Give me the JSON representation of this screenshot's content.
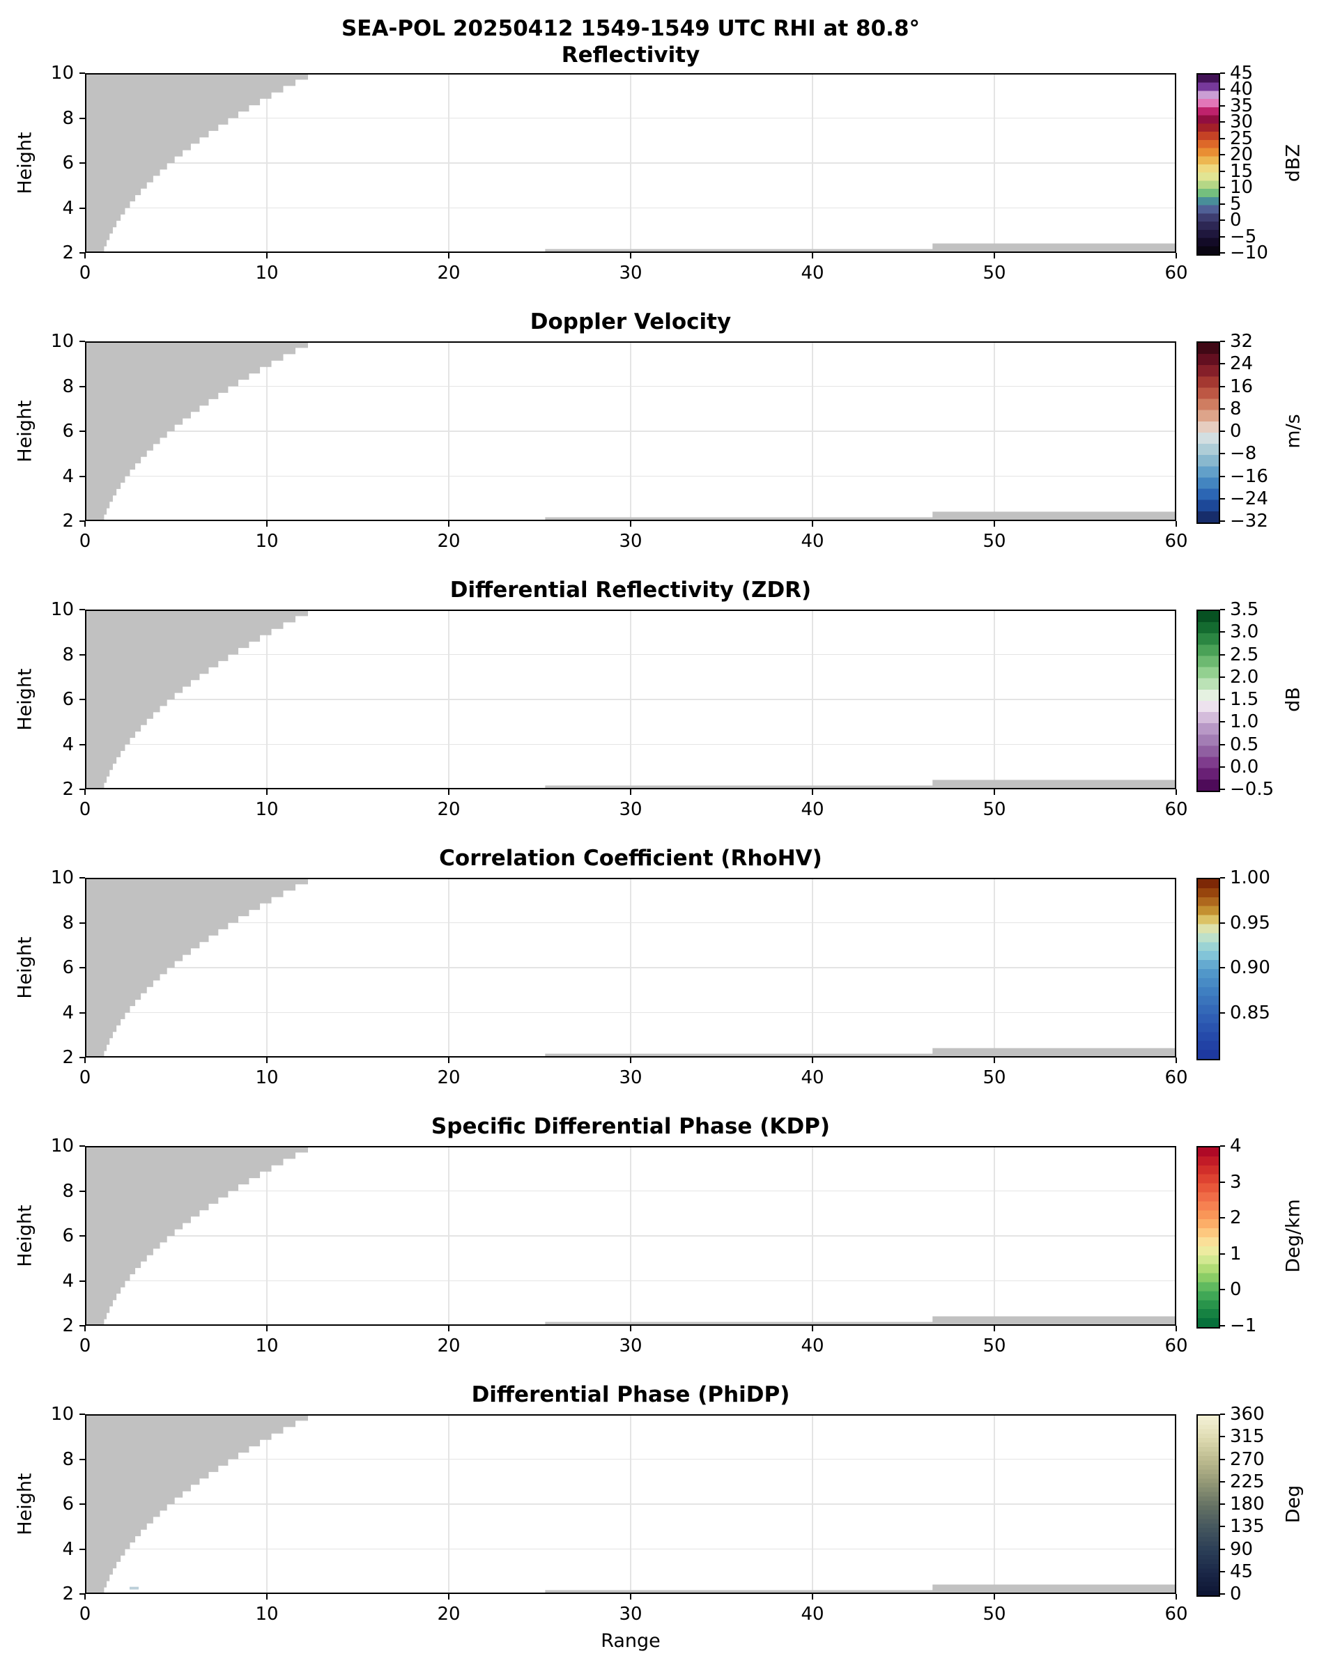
{
  "figure": {
    "title": "SEA-POL 20250412 1549-1549 UTC RHI at 80.8°",
    "xlabel": "Range",
    "ylabel": "Height",
    "background": "#ffffff"
  },
  "chart_data": {
    "type": "heatmap",
    "description": "Six stacked RHI radar panels sharing identical axes; data area is blank except gray no-data regions",
    "x_range": [
      0,
      60
    ],
    "y_range": [
      2,
      10
    ],
    "x_ticks": [
      0,
      10,
      20,
      30,
      40,
      50,
      60
    ],
    "y_ticks": [
      2,
      4,
      6,
      8,
      10
    ],
    "grid": true,
    "grid_color": "#e4e4e4",
    "no_data_color": "#c1c1c1",
    "no_data_regions": {
      "wedge_left_x": 0.08,
      "wedge_profile": [
        [
          2.0,
          1.05
        ],
        [
          2.29,
          1.19
        ],
        [
          2.57,
          1.35
        ],
        [
          2.86,
          1.53
        ],
        [
          3.14,
          1.73
        ],
        [
          3.43,
          1.96
        ],
        [
          3.71,
          2.2
        ],
        [
          4.0,
          2.47
        ],
        [
          4.29,
          2.76
        ],
        [
          4.57,
          3.07
        ],
        [
          4.86,
          3.4
        ],
        [
          5.14,
          3.75
        ],
        [
          5.43,
          4.12
        ],
        [
          5.71,
          4.51
        ],
        [
          6.0,
          4.93
        ],
        [
          6.29,
          5.37
        ],
        [
          6.57,
          5.82
        ],
        [
          6.86,
          6.3
        ],
        [
          7.14,
          6.8
        ],
        [
          7.43,
          7.33
        ],
        [
          7.71,
          7.87
        ],
        [
          8.0,
          8.43
        ],
        [
          8.29,
          9.02
        ],
        [
          8.57,
          9.62
        ],
        [
          8.86,
          10.25
        ],
        [
          9.14,
          10.9
        ],
        [
          9.43,
          11.57
        ],
        [
          9.71,
          12.26
        ],
        [
          10.0,
          12.97
        ]
      ],
      "strips": [
        {
          "x0": 25.3,
          "x1": 60,
          "y0": 2.0,
          "y1": 2.17
        },
        {
          "x0": 46.6,
          "x1": 60,
          "y0": 2.0,
          "y1": 2.42
        }
      ]
    },
    "marks": [
      {
        "panel": "phidp",
        "x0": 2.45,
        "x1": 2.95,
        "y0": 2.2,
        "y1": 2.32,
        "color": "#bccfd9"
      }
    ],
    "panels": [
      {
        "id": "reflectivity",
        "title": "Reflectivity",
        "unit": "dBZ",
        "vmin": -10,
        "vmax": 45,
        "cbar_ticks": [
          45,
          40,
          35,
          30,
          25,
          20,
          15,
          10,
          5,
          0,
          -5,
          -10
        ],
        "cbar_tick_labels": [
          "45",
          "40",
          "35",
          "30",
          "25",
          "20",
          "15",
          "10",
          "5",
          "0",
          "−5",
          "−10"
        ],
        "bands": 22,
        "cmap_stops": [
          [
            0.0,
            "#2e0835"
          ],
          [
            0.05,
            "#5b1d7e"
          ],
          [
            0.08,
            "#8a4cae"
          ],
          [
            0.105,
            "#c096d0"
          ],
          [
            0.125,
            "#d8a9da"
          ],
          [
            0.148,
            "#e48cc6"
          ],
          [
            0.17,
            "#e160ab"
          ],
          [
            0.195,
            "#cb2d7b"
          ],
          [
            0.22,
            "#a80f55"
          ],
          [
            0.255,
            "#8d0e3c"
          ],
          [
            0.295,
            "#a32029"
          ],
          [
            0.335,
            "#c23d25"
          ],
          [
            0.375,
            "#d95f27"
          ],
          [
            0.42,
            "#e8832e"
          ],
          [
            0.46,
            "#eca83f"
          ],
          [
            0.5,
            "#eecb69"
          ],
          [
            0.545,
            "#efe795"
          ],
          [
            0.585,
            "#d7e292"
          ],
          [
            0.625,
            "#a8d381"
          ],
          [
            0.66,
            "#73be7e"
          ],
          [
            0.69,
            "#47a68f"
          ],
          [
            0.715,
            "#4a7da1"
          ],
          [
            0.74,
            "#54699f"
          ],
          [
            0.775,
            "#454a80"
          ],
          [
            0.818,
            "#342e5f"
          ],
          [
            0.87,
            "#251d46"
          ],
          [
            0.91,
            "#170e30"
          ],
          [
            1.0,
            "#060309"
          ]
        ]
      },
      {
        "id": "velocity",
        "title": "Doppler Velocity",
        "unit": "m/s",
        "vmin": -32,
        "vmax": 32,
        "cbar_ticks": [
          32,
          24,
          16,
          8,
          0,
          -8,
          -16,
          -24,
          -32
        ],
        "cbar_tick_labels": [
          "32",
          "24",
          "16",
          "8",
          "0",
          "−8",
          "−16",
          "−24",
          "−32"
        ],
        "bands": 16,
        "cmap_stops": [
          [
            0.0,
            "#2e0510"
          ],
          [
            0.125,
            "#751225"
          ],
          [
            0.25,
            "#b44435"
          ],
          [
            0.375,
            "#d89070"
          ],
          [
            0.46,
            "#e5c6b6"
          ],
          [
            0.5,
            "#e9e7e6"
          ],
          [
            0.54,
            "#cbdce0"
          ],
          [
            0.625,
            "#9dc4d1"
          ],
          [
            0.75,
            "#4e94c6"
          ],
          [
            0.875,
            "#2056ae"
          ],
          [
            1.0,
            "#141f55"
          ]
        ]
      },
      {
        "id": "zdr",
        "title": "Differential Reflectivity (ZDR)",
        "unit": "dB",
        "vmin": -0.5,
        "vmax": 3.5,
        "cbar_ticks": [
          3.5,
          3.0,
          2.5,
          2.0,
          1.5,
          1.0,
          0.5,
          0.0,
          -0.5
        ],
        "cbar_tick_labels": [
          "3.5",
          "3.0",
          "2.5",
          "2.0",
          "1.5",
          "1.0",
          "0.5",
          "0.0",
          "−0.5"
        ],
        "bands": 16,
        "cmap_stops": [
          [
            0.0,
            "#00441b"
          ],
          [
            0.125,
            "#1b7837"
          ],
          [
            0.25,
            "#5aae61"
          ],
          [
            0.375,
            "#a6dba0"
          ],
          [
            0.47,
            "#e6f1e2"
          ],
          [
            0.5,
            "#f4f1f4"
          ],
          [
            0.56,
            "#e7d4e8"
          ],
          [
            0.625,
            "#c2a5cf"
          ],
          [
            0.75,
            "#9970ab"
          ],
          [
            0.875,
            "#762a83"
          ],
          [
            1.0,
            "#40004b"
          ]
        ]
      },
      {
        "id": "rhohv",
        "title": "Correlation Coefficient (RhoHV)",
        "unit": "",
        "vmin": 0.8,
        "vmax": 1.0,
        "cbar_ticks": [
          1.0,
          0.95,
          0.9,
          0.85
        ],
        "cbar_tick_labels": [
          "1.00",
          "0.95",
          "0.90",
          "0.85"
        ],
        "bands": 20,
        "cmap_stops": [
          [
            0.0,
            "#6f1a02"
          ],
          [
            0.07,
            "#95410c"
          ],
          [
            0.13,
            "#b06c1e"
          ],
          [
            0.19,
            "#c99c38"
          ],
          [
            0.23,
            "#ddc76c"
          ],
          [
            0.26,
            "#e6df9d"
          ],
          [
            0.3,
            "#cfe6c4"
          ],
          [
            0.36,
            "#a3d8d3"
          ],
          [
            0.43,
            "#7fc2d8"
          ],
          [
            0.5,
            "#569dcb"
          ],
          [
            0.62,
            "#4080c1"
          ],
          [
            0.75,
            "#3163b6"
          ],
          [
            0.88,
            "#2549a9"
          ],
          [
            1.0,
            "#1c359d"
          ]
        ]
      },
      {
        "id": "kdp",
        "title": "Specific Differential Phase (KDP)",
        "unit": "Deg/km",
        "vmin": -1,
        "vmax": 4,
        "cbar_ticks": [
          4,
          3,
          2,
          1,
          0,
          -1
        ],
        "cbar_tick_labels": [
          "4",
          "3",
          "2",
          "1",
          "0",
          "−1"
        ],
        "bands": 20,
        "cmap_stops": [
          [
            0.0,
            "#a50026"
          ],
          [
            0.1,
            "#cb2427"
          ],
          [
            0.2,
            "#e44c34"
          ],
          [
            0.3,
            "#f4774d"
          ],
          [
            0.4,
            "#fba05c"
          ],
          [
            0.47,
            "#fdc67d"
          ],
          [
            0.545,
            "#f9e8a2"
          ],
          [
            0.6,
            "#e3ee9e"
          ],
          [
            0.7,
            "#a0d669"
          ],
          [
            0.8,
            "#4bb05c"
          ],
          [
            0.9,
            "#1d8a45"
          ],
          [
            1.0,
            "#006837"
          ]
        ]
      },
      {
        "id": "phidp",
        "title": "Differential Phase (PhiDP)",
        "unit": "Deg",
        "vmin": 0,
        "vmax": 360,
        "cbar_ticks": [
          360,
          315,
          270,
          225,
          180,
          135,
          90,
          45,
          0
        ],
        "cbar_tick_labels": [
          "360",
          "315",
          "270",
          "225",
          "180",
          "135",
          "90",
          "45",
          "0"
        ],
        "bands": 40,
        "cmap_stops": [
          [
            0.0,
            "#f5f2d8"
          ],
          [
            0.125,
            "#dedbb2"
          ],
          [
            0.25,
            "#bcba8e"
          ],
          [
            0.375,
            "#939876"
          ],
          [
            0.5,
            "#657264"
          ],
          [
            0.625,
            "#44565e"
          ],
          [
            0.75,
            "#2b3e56"
          ],
          [
            0.875,
            "#1a2747"
          ],
          [
            1.0,
            "#0d1433"
          ]
        ]
      }
    ]
  }
}
